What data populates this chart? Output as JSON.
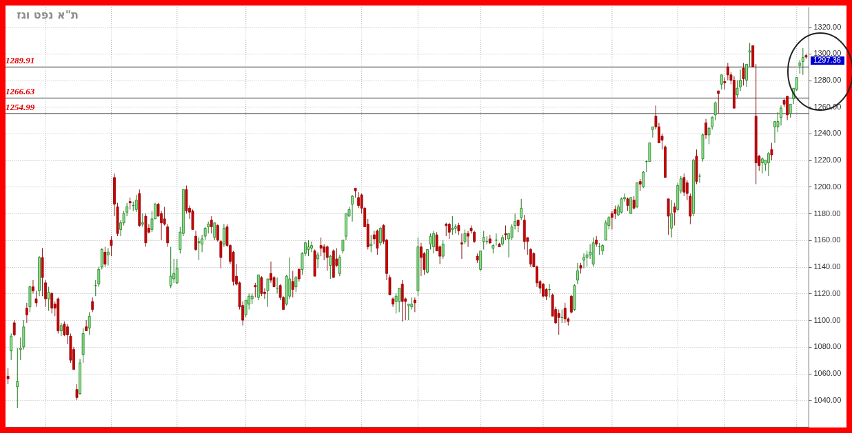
{
  "chart_data": {
    "type": "candlestick",
    "title": "ת\"א נפט וגז",
    "categories": [
      null,
      null,
      null,
      null,
      null,
      null,
      null,
      null,
      null,
      null,
      null,
      null,
      null,
      null,
      null,
      null,
      null,
      null,
      null,
      null,
      null,
      null,
      null,
      null,
      null,
      null,
      null,
      null,
      null,
      null,
      null,
      null,
      null,
      null,
      null,
      null,
      null,
      null,
      null,
      null,
      null,
      null,
      null,
      null,
      null,
      null,
      null,
      null,
      null,
      null,
      null,
      null,
      null,
      null,
      null,
      null,
      null,
      null,
      null,
      null,
      null,
      null,
      null,
      null,
      null,
      null,
      null,
      null,
      null,
      null,
      null,
      null,
      null,
      null,
      null,
      null,
      null,
      null,
      null,
      null,
      null,
      null,
      null,
      null,
      null,
      null,
      null,
      null,
      null,
      null,
      null,
      null,
      null,
      null,
      null,
      null,
      null,
      null,
      null,
      null,
      null,
      null,
      null,
      null,
      null,
      null,
      null,
      null,
      null,
      null,
      null,
      null,
      null,
      null,
      null,
      null,
      null,
      null,
      null,
      null,
      null,
      null,
      null,
      null,
      null,
      null,
      null,
      null,
      null,
      null,
      null,
      null,
      null,
      null,
      null,
      null,
      null,
      null,
      null,
      null,
      null,
      null,
      null,
      null,
      null,
      null,
      null,
      null,
      null,
      null,
      null,
      null,
      null,
      null,
      null,
      null,
      null,
      null,
      null,
      null,
      null,
      null,
      null,
      null,
      null,
      null,
      null,
      null,
      null,
      null,
      null,
      null,
      null,
      null,
      null,
      null,
      null,
      null,
      null,
      null,
      null,
      null,
      null,
      null,
      null,
      null,
      null,
      null,
      null,
      null,
      null,
      null,
      null,
      null,
      null,
      null,
      null,
      null,
      null,
      null,
      null,
      null,
      null,
      null,
      null,
      null,
      null,
      null,
      null,
      null,
      null,
      null,
      null,
      null,
      null,
      null,
      null,
      null,
      null,
      null,
      null,
      null,
      null,
      null,
      null,
      null,
      null,
      null,
      null,
      null,
      null,
      null,
      null,
      null,
      null,
      null,
      null,
      null,
      null,
      null,
      null,
      null,
      null,
      null,
      null,
      null,
      null,
      null,
      null,
      null,
      null,
      null,
      null,
      null,
      null,
      null
    ],
    "ohlc": [
      [
        1058,
        1064,
        1052,
        1056
      ],
      [
        1077,
        1090,
        1070,
        1088
      ],
      [
        1098,
        1100,
        1088,
        1089
      ],
      [
        1050,
        1079,
        1034,
        1054
      ],
      [
        1078,
        1087,
        1070,
        1079
      ],
      [
        1080,
        1100,
        1078,
        1095
      ],
      [
        1109,
        1113,
        1098,
        1104
      ],
      [
        1110,
        1126,
        1106,
        1125
      ],
      [
        1125,
        1130,
        1120,
        1122
      ],
      [
        1116,
        1122,
        1110,
        1113
      ],
      [
        1122,
        1148,
        1118,
        1147
      ],
      [
        1147,
        1154,
        1118,
        1132
      ],
      [
        1128,
        1130,
        1110,
        1116
      ],
      [
        1116,
        1125,
        1107,
        1121
      ],
      [
        1120,
        1121,
        1105,
        1109
      ],
      [
        1112,
        1114,
        1103,
        1109
      ],
      [
        1116,
        1117,
        1090,
        1092
      ],
      [
        1092,
        1098,
        1088,
        1096
      ],
      [
        1097,
        1099,
        1088,
        1089
      ],
      [
        1095,
        1097,
        1082,
        1089
      ],
      [
        1088,
        1090,
        1068,
        1070
      ],
      [
        1078,
        1080,
        1063,
        1063
      ],
      [
        1048,
        1052,
        1040,
        1042
      ],
      [
        1045,
        1071,
        1044,
        1068
      ],
      [
        1074,
        1094,
        1068,
        1090
      ],
      [
        1095,
        1100,
        1092,
        1092
      ],
      [
        1094,
        1106,
        1089,
        1103
      ],
      [
        1114,
        1117,
        1106,
        1108
      ],
      [
        1126,
        1130,
        1118,
        1126
      ],
      [
        1127,
        1140,
        1125,
        1138
      ],
      [
        1140,
        1154,
        1138,
        1153
      ],
      [
        1151,
        1155,
        1140,
        1142
      ],
      [
        1149,
        1154,
        1141,
        1151
      ],
      [
        1160,
        1163,
        1148,
        1156
      ],
      [
        1207,
        1210,
        1178,
        1187
      ],
      [
        1185,
        1188,
        1163,
        1165
      ],
      [
        1168,
        1175,
        1163,
        1173
      ],
      [
        1173,
        1182,
        1171,
        1180
      ],
      [
        1181,
        1188,
        1178,
        1185
      ],
      [
        1189,
        1192,
        1183,
        1188
      ],
      [
        1186,
        1189,
        1182,
        1186
      ],
      [
        1183,
        1194,
        1181,
        1190
      ],
      [
        1195,
        1198,
        1170,
        1171
      ],
      [
        1172,
        1180,
        1170,
        1173
      ],
      [
        1178,
        1180,
        1155,
        1158
      ],
      [
        1169,
        1172,
        1165,
        1166
      ],
      [
        1168,
        1182,
        1166,
        1176
      ],
      [
        1176,
        1188,
        1176,
        1187
      ],
      [
        1187,
        1188,
        1178,
        1178
      ],
      [
        1180,
        1182,
        1160,
        1173
      ],
      [
        1176,
        1185,
        1171,
        1172
      ],
      [
        1170,
        1172,
        1155,
        1158
      ],
      [
        1126,
        1155,
        1124,
        1133
      ],
      [
        1131,
        1146,
        1128,
        1135
      ],
      [
        1128,
        1146,
        1127,
        1139
      ],
      [
        1153,
        1170,
        1150,
        1166
      ],
      [
        1165,
        1198,
        1163,
        1198
      ],
      [
        1198,
        1201,
        1180,
        1182
      ],
      [
        1184,
        1186,
        1176,
        1181
      ],
      [
        1182,
        1183,
        1168,
        1168
      ],
      [
        1163,
        1167,
        1152,
        1153
      ],
      [
        1158,
        1162,
        1145,
        1159
      ],
      [
        1157,
        1164,
        1151,
        1161
      ],
      [
        1163,
        1170,
        1160,
        1169
      ],
      [
        1170,
        1174,
        1165,
        1172
      ],
      [
        1175,
        1178,
        1165,
        1170
      ],
      [
        1162,
        1173,
        1160,
        1173
      ],
      [
        1171,
        1172,
        1159,
        1160
      ],
      [
        1159,
        1160,
        1139,
        1147
      ],
      [
        1157,
        1172,
        1155,
        1169
      ],
      [
        1170,
        1172,
        1155,
        1156
      ],
      [
        1156,
        1157,
        1142,
        1144
      ],
      [
        1151,
        1152,
        1126,
        1129
      ],
      [
        1133,
        1142,
        1126,
        1127
      ],
      [
        1128,
        1129,
        1108,
        1110
      ],
      [
        1111,
        1114,
        1096,
        1100
      ],
      [
        1104,
        1115,
        1102,
        1115
      ],
      [
        1112,
        1120,
        1108,
        1118
      ],
      [
        1116,
        1120,
        1112,
        1118
      ],
      [
        1126,
        1128,
        1117,
        1125
      ],
      [
        1117,
        1134,
        1115,
        1134
      ],
      [
        1132,
        1133,
        1118,
        1120
      ],
      [
        1121,
        1124,
        1116,
        1120
      ],
      [
        1122,
        1131,
        1110,
        1131
      ],
      [
        1135,
        1144,
        1128,
        1130
      ],
      [
        1132,
        1133,
        1125,
        1125
      ],
      [
        1124,
        1132,
        1120,
        1124
      ],
      [
        1126,
        1127,
        1115,
        1117
      ],
      [
        1117,
        1118,
        1108,
        1108
      ],
      [
        1112,
        1134,
        1111,
        1133
      ],
      [
        1118,
        1147,
        1116,
        1131
      ],
      [
        1129,
        1137,
        1117,
        1123
      ],
      [
        1125,
        1133,
        1121,
        1132
      ],
      [
        1138,
        1139,
        1129,
        1131
      ],
      [
        1138,
        1151,
        1134,
        1150
      ],
      [
        1150,
        1159,
        1148,
        1158
      ],
      [
        1153,
        1160,
        1148,
        1155
      ],
      [
        1154,
        1159,
        1151,
        1156
      ],
      [
        1152,
        1153,
        1133,
        1133
      ],
      [
        1146,
        1151,
        1139,
        1149
      ],
      [
        1156,
        1162,
        1148,
        1154
      ],
      [
        1155,
        1157,
        1145,
        1151
      ],
      [
        1155,
        1156,
        1137,
        1147
      ],
      [
        1141,
        1149,
        1131,
        1148
      ],
      [
        1152,
        1153,
        1132,
        1132
      ],
      [
        1146,
        1154,
        1140,
        1141
      ],
      [
        1135,
        1149,
        1133,
        1147
      ],
      [
        1152,
        1160,
        1150,
        1160
      ],
      [
        1163,
        1180,
        1160,
        1180
      ],
      [
        1178,
        1185,
        1178,
        1183
      ],
      [
        1187,
        1194,
        1174,
        1193
      ],
      [
        1199,
        1199,
        1192,
        1197
      ],
      [
        1192,
        1196,
        1184,
        1186
      ],
      [
        1194,
        1195,
        1180,
        1184
      ],
      [
        1184,
        1185,
        1170,
        1170
      ],
      [
        1172,
        1176,
        1153,
        1155
      ],
      [
        1156,
        1164,
        1151,
        1157
      ],
      [
        1164,
        1167,
        1157,
        1161
      ],
      [
        1167,
        1168,
        1149,
        1154
      ],
      [
        1158,
        1170,
        1156,
        1169
      ],
      [
        1171,
        1172,
        1157,
        1159
      ],
      [
        1160,
        1161,
        1130,
        1135
      ],
      [
        1132,
        1134,
        1119,
        1119
      ],
      [
        1116,
        1117,
        1110,
        1112
      ],
      [
        1114,
        1120,
        1105,
        1118
      ],
      [
        1114,
        1124,
        1106,
        1124
      ],
      [
        1127,
        1130,
        1099,
        1114
      ],
      [
        1116,
        1117,
        1100,
        1114
      ],
      [
        1111,
        1112,
        1100,
        1112
      ],
      [
        1110,
        1117,
        1108,
        1112
      ],
      [
        1115,
        1117,
        1106,
        1113
      ],
      [
        1122,
        1162,
        1118,
        1155
      ],
      [
        1155,
        1158,
        1133,
        1147
      ],
      [
        1150,
        1151,
        1134,
        1138
      ],
      [
        1136,
        1153,
        1135,
        1153
      ],
      [
        1157,
        1165,
        1153,
        1163
      ],
      [
        1155,
        1167,
        1150,
        1165
      ],
      [
        1164,
        1166,
        1152,
        1152
      ],
      [
        1155,
        1156,
        1142,
        1148
      ],
      [
        1148,
        1160,
        1146,
        1157
      ],
      [
        1172,
        1173,
        1163,
        1171
      ],
      [
        1172,
        1173,
        1161,
        1166
      ],
      [
        1168,
        1178,
        1164,
        1169
      ],
      [
        1169,
        1172,
        1165,
        1170
      ],
      [
        1171,
        1173,
        1164,
        1167
      ],
      [
        1158,
        1165,
        1146,
        1157
      ],
      [
        1159,
        1168,
        1157,
        1165
      ],
      [
        1165,
        1167,
        1155,
        1163
      ],
      [
        1169,
        1171,
        1165,
        1167
      ],
      [
        1166,
        1167,
        1158,
        1159
      ],
      [
        1148,
        1150,
        1143,
        1145
      ],
      [
        1138,
        1152,
        1137,
        1152
      ],
      [
        1159,
        1167,
        1153,
        1162
      ],
      [
        1159,
        1163,
        1157,
        1159
      ],
      [
        1161,
        1164,
        1157,
        1158
      ],
      [
        1154,
        1157,
        1150,
        1156
      ],
      [
        1160,
        1165,
        1156,
        1160
      ],
      [
        1157,
        1158,
        1155,
        1155
      ],
      [
        1157,
        1164,
        1156,
        1162
      ],
      [
        1165,
        1171,
        1160,
        1164
      ],
      [
        1161,
        1165,
        1147,
        1165
      ],
      [
        1162,
        1172,
        1160,
        1170
      ],
      [
        1171,
        1180,
        1168,
        1174
      ],
      [
        1175,
        1175,
        1166,
        1171
      ],
      [
        1177,
        1191,
        1175,
        1184
      ],
      [
        1175,
        1179,
        1153,
        1159
      ],
      [
        1162,
        1162,
        1149,
        1159
      ],
      [
        1153,
        1154,
        1140,
        1142
      ],
      [
        1150,
        1151,
        1140,
        1140
      ],
      [
        1140,
        1141,
        1125,
        1128
      ],
      [
        1129,
        1130,
        1120,
        1124
      ],
      [
        1127,
        1128,
        1117,
        1118
      ],
      [
        1123,
        1124,
        1115,
        1118
      ],
      [
        1123,
        1127,
        1117,
        1123
      ],
      [
        1119,
        1120,
        1103,
        1103
      ],
      [
        1108,
        1110,
        1097,
        1098
      ],
      [
        1105,
        1108,
        1089,
        1102
      ],
      [
        1102,
        1108,
        1098,
        1102
      ],
      [
        1109,
        1113,
        1098,
        1101
      ],
      [
        1101,
        1102,
        1096,
        1099
      ],
      [
        1118,
        1119,
        1105,
        1106
      ],
      [
        1108,
        1127,
        1107,
        1126
      ],
      [
        1130,
        1143,
        1127,
        1137
      ],
      [
        1141,
        1143,
        1135,
        1139
      ],
      [
        1145,
        1150,
        1139,
        1147
      ],
      [
        1147,
        1152,
        1140,
        1149
      ],
      [
        1149,
        1157,
        1146,
        1151
      ],
      [
        1142,
        1162,
        1140,
        1158
      ],
      [
        1160,
        1163,
        1155,
        1157
      ],
      [
        1155,
        1158,
        1149,
        1155
      ],
      [
        1152,
        1157,
        1149,
        1156
      ],
      [
        1160,
        1175,
        1160,
        1173
      ],
      [
        1171,
        1178,
        1168,
        1177
      ],
      [
        1180,
        1182,
        1168,
        1177
      ],
      [
        1183,
        1186,
        1176,
        1180
      ],
      [
        1179,
        1187,
        1178,
        1185
      ],
      [
        1181,
        1192,
        1180,
        1191
      ],
      [
        1191,
        1195,
        1189,
        1192
      ],
      [
        1191,
        1192,
        1182,
        1186
      ],
      [
        1180,
        1192,
        1180,
        1192
      ],
      [
        1190,
        1193,
        1183,
        1184
      ],
      [
        1185,
        1203,
        1184,
        1203
      ],
      [
        1204,
        1206,
        1197,
        1202
      ],
      [
        1200,
        1212,
        1199,
        1211
      ],
      [
        1219,
        1220,
        1211,
        1219
      ],
      [
        1219,
        1233,
        1219,
        1233
      ],
      [
        1243,
        1245,
        1237,
        1245
      ],
      [
        1253,
        1261,
        1243,
        1245
      ],
      [
        1245,
        1248,
        1233,
        1233
      ],
      [
        1238,
        1240,
        1228,
        1235
      ],
      [
        1230,
        1231,
        1207,
        1207
      ],
      [
        1191,
        1191,
        1164,
        1178
      ],
      [
        1169,
        1190,
        1162,
        1180
      ],
      [
        1185,
        1188,
        1171,
        1181
      ],
      [
        1183,
        1203,
        1182,
        1201
      ],
      [
        1197,
        1208,
        1195,
        1206
      ],
      [
        1207,
        1210,
        1193,
        1196
      ],
      [
        1203,
        1205,
        1190,
        1195
      ],
      [
        1193,
        1195,
        1172,
        1178
      ],
      [
        1180,
        1221,
        1178,
        1220
      ],
      [
        1223,
        1228,
        1202,
        1204
      ],
      [
        1208,
        1210,
        1203,
        1208
      ],
      [
        1221,
        1240,
        1219,
        1239
      ],
      [
        1248,
        1251,
        1236,
        1239
      ],
      [
        1239,
        1245,
        1232,
        1244
      ],
      [
        1245,
        1253,
        1243,
        1252
      ],
      [
        1254,
        1264,
        1250,
        1263
      ],
      [
        1272,
        1272,
        1255,
        1270
      ],
      [
        1277,
        1284,
        1273,
        1284
      ],
      [
        1279,
        1282,
        1273,
        1278
      ],
      [
        1290,
        1293,
        1280,
        1284
      ],
      [
        1284,
        1286,
        1277,
        1280
      ],
      [
        1280,
        1283,
        1259,
        1259
      ],
      [
        1269,
        1280,
        1267,
        1274
      ],
      [
        1275,
        1288,
        1272,
        1280
      ],
      [
        1289,
        1293,
        1276,
        1281
      ],
      [
        1280,
        1292,
        1275,
        1292
      ],
      [
        1301,
        1308,
        1290,
        1302
      ],
      [
        1306,
        1306,
        1290,
        1290
      ],
      [
        1253,
        1292,
        1202,
        1218
      ],
      [
        1223,
        1224,
        1212,
        1216
      ],
      [
        1218,
        1222,
        1210,
        1221
      ],
      [
        1217,
        1220,
        1212,
        1220
      ],
      [
        1218,
        1226,
        1208,
        1225
      ],
      [
        1228,
        1233,
        1220,
        1224
      ],
      [
        1245,
        1249,
        1233,
        1249
      ],
      [
        1245,
        1256,
        1241,
        1249
      ],
      [
        1252,
        1261,
        1246,
        1259
      ],
      [
        1265,
        1266,
        1260,
        1262
      ],
      [
        1268,
        1268,
        1250,
        1254
      ],
      [
        1255,
        1262,
        1252,
        1262
      ],
      [
        1266,
        1274,
        1262,
        1274
      ],
      [
        1273,
        1282,
        1272,
        1282
      ],
      [
        1291,
        1295,
        1285,
        1293
      ],
      [
        1294,
        1304,
        1284,
        1297
      ],
      [
        1298.5,
        1300,
        1296,
        1297.36
      ]
    ],
    "ylim": [
      1020,
      1335
    ],
    "yticks": [
      {
        "value": 1040,
        "label": "1040.00"
      },
      {
        "value": 1060,
        "label": "1060.00"
      },
      {
        "value": 1080,
        "label": "1080.00"
      },
      {
        "value": 1100,
        "label": "1100.00"
      },
      {
        "value": 1120,
        "label": "1120.00"
      },
      {
        "value": 1140,
        "label": "1140.00"
      },
      {
        "value": 1160,
        "label": "1160.00"
      },
      {
        "value": 1180,
        "label": "1180.00"
      },
      {
        "value": 1200,
        "label": "1200.00"
      },
      {
        "value": 1220,
        "label": "1220.00"
      },
      {
        "value": 1240,
        "label": "1240.00"
      },
      {
        "value": 1260,
        "label": "1260.00"
      },
      {
        "value": 1280,
        "label": "1280.00"
      },
      {
        "value": 1300,
        "label": "1300.00"
      },
      {
        "value": 1320,
        "label": "1320.00"
      }
    ],
    "grid": true,
    "tick_labels": "y",
    "ref_lines": [
      {
        "axis": "y",
        "value": 1289.91,
        "label": "1289.91"
      },
      {
        "axis": "y",
        "value": 1266.63,
        "label": "1266.63"
      },
      {
        "axis": "y",
        "value": 1254.99,
        "label": "1254.99"
      }
    ],
    "annotations": [
      "1297.36"
    ]
  }
}
